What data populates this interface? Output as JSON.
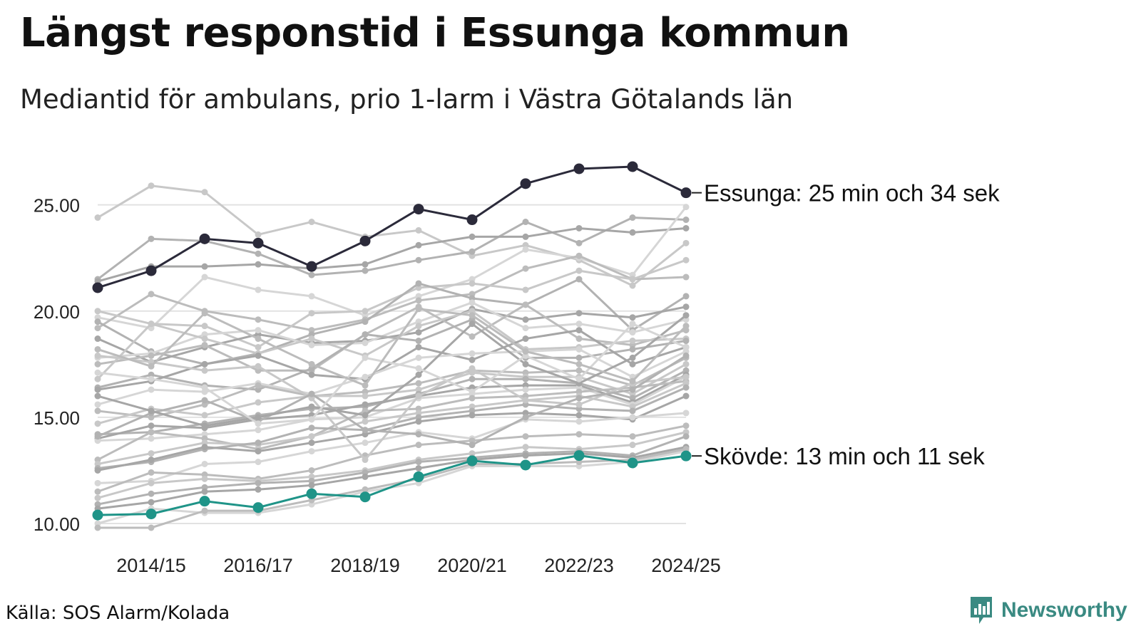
{
  "title": "Längst responstid i Essunga kommun",
  "subtitle": "Mediantid för ambulans, prio 1-larm i Västra Götalands län",
  "source": "Källa: SOS Alarm/Kolada",
  "brand": "Newsworthy",
  "colors": {
    "highlight_dark": "#2b2a3a",
    "highlight_teal": "#1f9488",
    "background_series": [
      "#c8c8c8",
      "#b2b2b2",
      "#a6a6a6",
      "#d6d6d6",
      "#bcbcbc"
    ],
    "grid": "#e2e2e2",
    "brand": "#3a8a82"
  },
  "chart_data": {
    "type": "line",
    "title": "Längst responstid i Essunga kommun",
    "subtitle": "Mediantid för ambulans, prio 1-larm i Västra Götalands län",
    "xlabel": "",
    "ylabel": "",
    "categories": [
      "2013/14",
      "2014/15",
      "2015/16",
      "2016/17",
      "2017/18",
      "2018/19",
      "2019/20",
      "2020/21",
      "2021/22",
      "2022/23",
      "2023/24",
      "2024/25"
    ],
    "x_tick_labels": [
      "2014/15",
      "2016/17",
      "2018/19",
      "2020/21",
      "2022/23",
      "2024/25"
    ],
    "y_ticks": [
      "10.00",
      "15.00",
      "20.00",
      "25.00"
    ],
    "ylim": [
      10,
      27
    ],
    "grid": true,
    "highlighted_series": [
      {
        "name": "Essunga",
        "label": "Essunga: 25 min och 34 sek",
        "color": "#2b2a3a",
        "values": [
          21.1,
          21.9,
          23.4,
          23.2,
          22.1,
          23.3,
          24.8,
          24.3,
          26.0,
          26.7,
          26.8,
          25.57
        ]
      },
      {
        "name": "Skövde",
        "label": "Skövde: 13 min och 11 sek",
        "color": "#1f9488",
        "values": [
          10.4,
          10.45,
          11.05,
          10.75,
          11.4,
          11.25,
          12.2,
          12.95,
          12.75,
          13.2,
          12.85,
          13.18
        ]
      }
    ],
    "background_series": [
      [
        24.4,
        25.9,
        25.6,
        23.6,
        24.2,
        23.5,
        23.8,
        22.6,
        23.1,
        22.4,
        21.2,
        23.2
      ],
      [
        21.5,
        23.4,
        23.3,
        22.7,
        21.7,
        21.9,
        22.4,
        22.8,
        24.2,
        23.2,
        24.4,
        24.3
      ],
      [
        21.4,
        22.1,
        22.1,
        22.2,
        22.0,
        22.2,
        23.1,
        23.5,
        23.5,
        23.9,
        23.7,
        23.9
      ],
      [
        19.7,
        19.2,
        21.6,
        21.0,
        20.7,
        19.8,
        20.7,
        21.5,
        22.9,
        22.5,
        21.7,
        24.9
      ],
      [
        19.2,
        20.8,
        20.0,
        19.6,
        19.1,
        19.6,
        20.5,
        20.8,
        22.0,
        22.6,
        21.5,
        21.6
      ],
      [
        20.0,
        19.4,
        19.3,
        18.3,
        19.9,
        20.0,
        21.1,
        21.3,
        21.0,
        21.9,
        21.5,
        22.4
      ],
      [
        19.5,
        18.1,
        17.5,
        18.0,
        18.9,
        19.5,
        21.3,
        20.6,
        20.3,
        21.5,
        19.1,
        20.7
      ],
      [
        18.7,
        17.6,
        18.3,
        18.9,
        18.5,
        18.6,
        19.0,
        20.1,
        19.6,
        19.9,
        19.7,
        20.2
      ],
      [
        17.8,
        18.0,
        18.9,
        19.1,
        18.4,
        18.5,
        19.5,
        20.4,
        19.2,
        19.4,
        19.0,
        19.6
      ],
      [
        17.5,
        17.9,
        18.4,
        17.2,
        17.2,
        18.9,
        20.2,
        18.8,
        20.3,
        18.7,
        18.4,
        19.1
      ],
      [
        16.8,
        19.4,
        18.7,
        18.0,
        18.7,
        17.9,
        19.3,
        20.0,
        18.2,
        18.3,
        18.6,
        18.7
      ],
      [
        16.4,
        17.0,
        16.5,
        16.3,
        17.3,
        18.9,
        18.6,
        19.6,
        17.8,
        17.8,
        18.2,
        18.6
      ],
      [
        16.3,
        16.7,
        17.5,
        17.9,
        17.0,
        16.8,
        18.3,
        17.7,
        18.7,
        19.1,
        17.5,
        18.3
      ],
      [
        15.6,
        16.3,
        16.2,
        16.6,
        16.1,
        16.9,
        17.8,
        18.0,
        18.1,
        18.2,
        16.9,
        18.1
      ],
      [
        15.3,
        15.0,
        15.6,
        16.5,
        16.0,
        16.2,
        16.6,
        17.2,
        17.1,
        17.2,
        16.5,
        17.8
      ],
      [
        14.7,
        15.4,
        15.1,
        15.7,
        16.0,
        16.0,
        16.3,
        17.1,
        16.9,
        16.9,
        16.1,
        17.5
      ],
      [
        14.2,
        14.3,
        14.7,
        15.1,
        15.4,
        15.5,
        16.1,
        16.8,
        16.8,
        16.6,
        15.9,
        17.2
      ],
      [
        14.0,
        14.6,
        14.5,
        14.9,
        15.1,
        15.6,
        16.0,
        16.4,
        16.5,
        16.5,
        15.7,
        17.0
      ],
      [
        13.9,
        14.0,
        14.2,
        14.4,
        14.9,
        15.0,
        15.9,
        16.1,
        16.3,
        16.4,
        15.6,
        16.9
      ],
      [
        13.0,
        14.3,
        14.0,
        13.5,
        14.1,
        15.3,
        15.4,
        15.9,
        16.0,
        16.2,
        16.4,
        16.7
      ],
      [
        12.8,
        13.3,
        13.8,
        13.7,
        14.1,
        14.8,
        15.2,
        15.5,
        15.8,
        16.0,
        15.5,
        16.6
      ],
      [
        12.6,
        12.9,
        13.5,
        13.8,
        14.5,
        14.4,
        15.0,
        15.3,
        15.6,
        15.4,
        15.3,
        16.4
      ],
      [
        12.5,
        13.0,
        13.6,
        13.4,
        13.8,
        14.2,
        14.8,
        15.1,
        15.2,
        15.1,
        14.9,
        16.0
      ],
      [
        11.9,
        12.0,
        12.8,
        12.9,
        13.4,
        13.8,
        14.3,
        14.0,
        14.9,
        14.8,
        15.0,
        15.2
      ],
      [
        11.5,
        12.4,
        12.3,
        12.1,
        12.5,
        13.2,
        13.7,
        13.9,
        14.1,
        14.2,
        14.1,
        14.6
      ],
      [
        11.2,
        11.9,
        12.1,
        12.0,
        12.2,
        12.5,
        13.0,
        13.3,
        13.6,
        13.5,
        13.7,
        14.3
      ],
      [
        10.9,
        11.4,
        11.7,
        11.9,
        12.0,
        12.4,
        12.9,
        13.1,
        13.3,
        13.4,
        13.2,
        14.1
      ],
      [
        10.7,
        11.0,
        11.5,
        11.6,
        11.8,
        12.2,
        12.6,
        13.0,
        13.2,
        13.3,
        13.1,
        13.6
      ],
      [
        10.0,
        10.7,
        10.5,
        10.5,
        10.9,
        11.5,
        11.9,
        12.7,
        12.7,
        12.7,
        12.9,
        13.4
      ],
      [
        9.8,
        9.8,
        10.6,
        10.6,
        11.1,
        11.6,
        12.1,
        12.8,
        12.8,
        12.9,
        13.0,
        13.5
      ],
      [
        17.9,
        17.6,
        17.2,
        17.4,
        15.9,
        13.0,
        16.0,
        17.3,
        15.8,
        15.6,
        16.6,
        16.9
      ],
      [
        14.1,
        15.2,
        15.8,
        14.8,
        16.1,
        14.4,
        14.2,
        13.7,
        15.0,
        15.9,
        16.3,
        17.9
      ],
      [
        16.0,
        15.3,
        14.6,
        15.0,
        15.5,
        15.1,
        17.0,
        19.4,
        17.5,
        16.6,
        17.8,
        19.8
      ],
      [
        17.1,
        16.8,
        16.4,
        14.7,
        14.9,
        17.8,
        17.3,
        16.2,
        17.9,
        16.8,
        19.4,
        18.3
      ],
      [
        18.2,
        17.4,
        19.9,
        18.7,
        17.5,
        16.5,
        20.1,
        19.8,
        18.1,
        17.5,
        16.7,
        19.3
      ]
    ]
  }
}
